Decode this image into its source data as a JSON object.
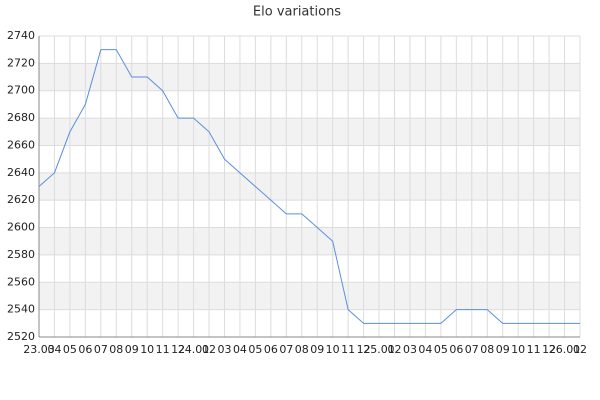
{
  "chart_data": {
    "type": "line",
    "title": "Elo variations",
    "categories": [
      "23.03",
      "04",
      "05",
      "06",
      "07",
      "08",
      "09",
      "10",
      "11",
      "12",
      "24.01",
      "02",
      "03",
      "04",
      "05",
      "06",
      "07",
      "08",
      "09",
      "10",
      "11",
      "12",
      "25.01",
      "02",
      "03",
      "04",
      "05",
      "06",
      "07",
      "08",
      "09",
      "10",
      "11",
      "12",
      "26.01",
      "02"
    ],
    "series": [
      {
        "name": "Elo",
        "color": "#5b8fe0",
        "values": [
          2630,
          2640,
          2670,
          2690,
          2730,
          2730,
          2710,
          2710,
          2700,
          2680,
          2680,
          2670,
          2650,
          2640,
          2630,
          2620,
          2610,
          2610,
          2600,
          2590,
          2540,
          2530,
          2530,
          2530,
          2530,
          2530,
          2530,
          2540,
          2540,
          2540,
          2530,
          2530,
          2530,
          2530,
          2530,
          2530
        ]
      }
    ],
    "ylim": [
      2520,
      2740
    ],
    "yticks": [
      2520,
      2540,
      2560,
      2580,
      2600,
      2620,
      2640,
      2660,
      2680,
      2700,
      2720,
      2740
    ],
    "grid": true
  }
}
